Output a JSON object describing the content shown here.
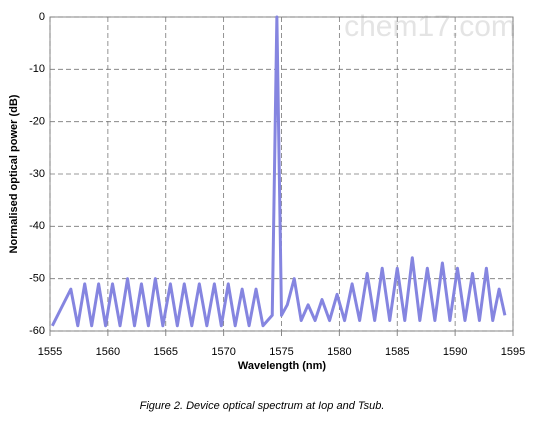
{
  "chart_data": {
    "type": "line",
    "x_label": "Wavelength (nm)",
    "y_label": "Normalised optical power (dB)",
    "caption": "Figure 2. Device optical spectrum at Iop and Tsub.",
    "watermark": "chem17.com",
    "xlim": [
      1555,
      1595
    ],
    "xticks": [
      1555,
      1560,
      1565,
      1570,
      1575,
      1580,
      1585,
      1590,
      1595
    ],
    "ylim": [
      -60,
      0
    ],
    "yticks": [
      0,
      -10,
      -20,
      -30,
      -40,
      -50,
      -60
    ],
    "grid": true,
    "series": [
      {
        "color": "#8585e0",
        "x": [
          1555.2,
          1556.8,
          1557.4,
          1558.0,
          1558.6,
          1559.2,
          1559.8,
          1560.4,
          1561.05,
          1561.7,
          1562.3,
          1562.9,
          1563.5,
          1564.1,
          1564.75,
          1565.4,
          1566.0,
          1566.6,
          1567.25,
          1567.9,
          1568.55,
          1569.2,
          1569.8,
          1570.4,
          1571.0,
          1571.6,
          1572.2,
          1572.8,
          1573.4,
          1574.2,
          1574.6,
          1575.0,
          1575.5,
          1576.1,
          1576.7,
          1577.3,
          1577.9,
          1578.5,
          1579.15,
          1579.8,
          1580.45,
          1581.1,
          1581.75,
          1582.4,
          1583.05,
          1583.7,
          1584.35,
          1585.0,
          1585.65,
          1586.3,
          1586.95,
          1587.6,
          1588.25,
          1588.9,
          1589.55,
          1590.2,
          1590.85,
          1591.5,
          1592.1,
          1592.7,
          1593.25,
          1593.8,
          1594.3
        ],
        "values": [
          -59,
          -52,
          -59,
          -51,
          -59,
          -51,
          -59,
          -51,
          -59,
          -50,
          -59,
          -51,
          -59,
          -50,
          -59,
          -51,
          -59,
          -51,
          -59,
          -51,
          -59,
          -51,
          -59,
          -51,
          -59,
          -52,
          -59,
          -52,
          -59,
          -57,
          0,
          -57,
          -55,
          -50,
          -58,
          -55,
          -58,
          -54,
          -58,
          -53,
          -58,
          -51,
          -58,
          -49,
          -58,
          -48,
          -58,
          -48,
          -58,
          -46,
          -58,
          -48,
          -58,
          -47,
          -58,
          -48,
          -58,
          -49,
          -58,
          -48,
          -58,
          -52,
          -57
        ]
      }
    ]
  }
}
